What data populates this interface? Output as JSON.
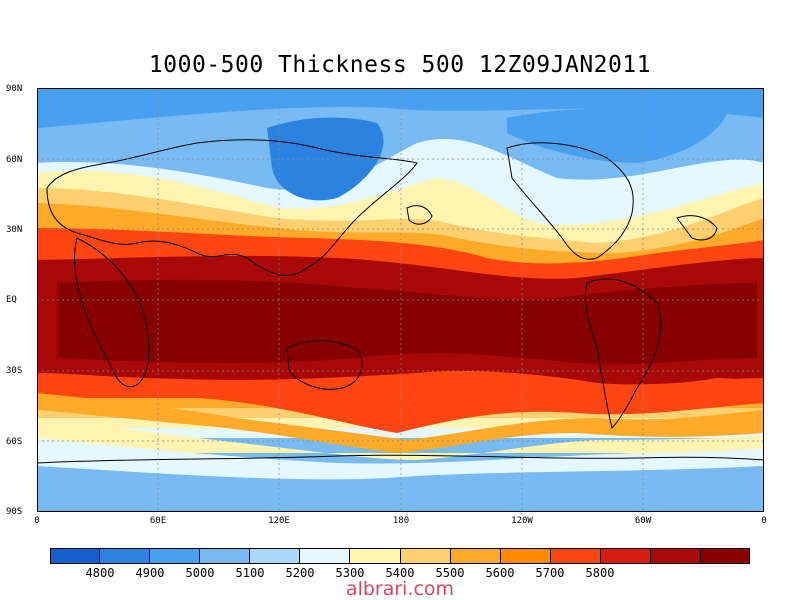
{
  "title": "1000-500 Thickness 500 12Z09JAN2011",
  "lat_labels": [
    "90N",
    "60N",
    "30N",
    "EQ",
    "30S",
    "60S",
    "90S"
  ],
  "lon_labels": [
    "0",
    "60E",
    "120E",
    "180",
    "120W",
    "60W",
    "0"
  ],
  "colorbar": {
    "colors": [
      "#1660cc",
      "#2b82e0",
      "#4aa0f0",
      "#78bbf4",
      "#a8d8fa",
      "#e6f8ff",
      "#fff4b0",
      "#ffd070",
      "#ffaa28",
      "#ff8a00",
      "#ff4612",
      "#d81c10",
      "#a80808",
      "#870000"
    ],
    "labels": [
      "4800",
      "4900",
      "5000",
      "5100",
      "5200",
      "5300",
      "5400",
      "5500",
      "5600",
      "5700",
      "5800"
    ]
  },
  "watermark": "albrari.com"
}
